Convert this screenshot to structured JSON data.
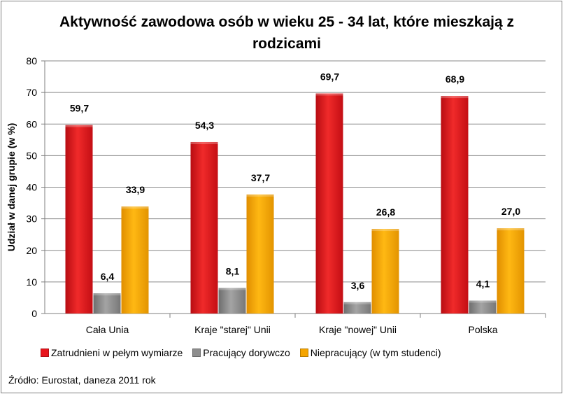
{
  "chart_data": {
    "type": "bar",
    "title": "Aktywność zawodowa osób w wieku 25 - 34 lat, które mieszkają z rodzicami",
    "xlabel": "",
    "ylabel": "Udział w danej grupie (w %)",
    "ylim": [
      0,
      80
    ],
    "yticks": [
      "0",
      "10",
      "20",
      "30",
      "40",
      "50",
      "60",
      "70",
      "80"
    ],
    "categories": [
      "Cała Unia",
      "Kraje \"starej\" Unii",
      "Kraje \"nowej\" Unii",
      "Polska"
    ],
    "series": [
      {
        "name": "Zatrudnieni w pełym wymiarze",
        "color": "#e8141c",
        "values": [
          59.7,
          54.3,
          69.7,
          68.9
        ],
        "labels": [
          "59,7",
          "54,3",
          "69,7",
          "68,9"
        ]
      },
      {
        "name": "Pracujący dorywczo",
        "color": "#8e8e8e",
        "values": [
          6.4,
          8.1,
          3.6,
          4.1
        ],
        "labels": [
          "6,4",
          "8,1",
          "3,6",
          "4,1"
        ]
      },
      {
        "name": "Niepracujący (w tym studenci)",
        "color": "#f5a500",
        "values": [
          33.9,
          37.7,
          26.8,
          27.0
        ],
        "labels": [
          "33,9",
          "37,7",
          "26,8",
          "27,0"
        ]
      }
    ],
    "grid": true,
    "legend_position": "bottom"
  },
  "source_note": "Źródło: Eurostat, daneza 2011 rok"
}
